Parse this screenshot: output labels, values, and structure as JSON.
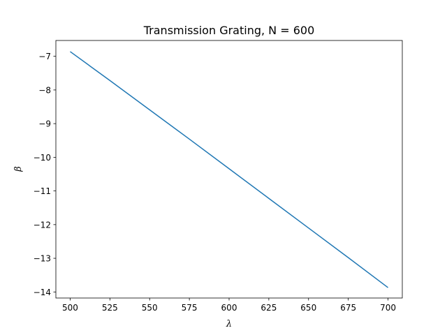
{
  "chart_data": {
    "type": "line",
    "title": "Transmission Grating, N = 600",
    "xlabel": "λ",
    "ylabel": "β",
    "xlim": [
      491,
      709
    ],
    "ylim": [
      -14.18,
      -6.53
    ],
    "xticks": [
      500,
      525,
      550,
      575,
      600,
      625,
      650,
      675,
      700
    ],
    "xtick_labels": [
      "500",
      "525",
      "550",
      "575",
      "600",
      "625",
      "650",
      "675",
      "700"
    ],
    "yticks": [
      -7,
      -8,
      -9,
      -10,
      -11,
      -12,
      -13,
      -14
    ],
    "ytick_labels": [
      "−7",
      "−8",
      "−9",
      "−10",
      "−11",
      "−12",
      "−13",
      "−14"
    ],
    "grid": false,
    "series": [
      {
        "color": "#1f77b4",
        "x": [
          500,
          525,
          550,
          575,
          600,
          625,
          650,
          675,
          700
        ],
        "y": [
          -6.86,
          -7.72,
          -8.59,
          -9.46,
          -10.34,
          -11.22,
          -12.1,
          -12.98,
          -13.87
        ]
      }
    ]
  }
}
